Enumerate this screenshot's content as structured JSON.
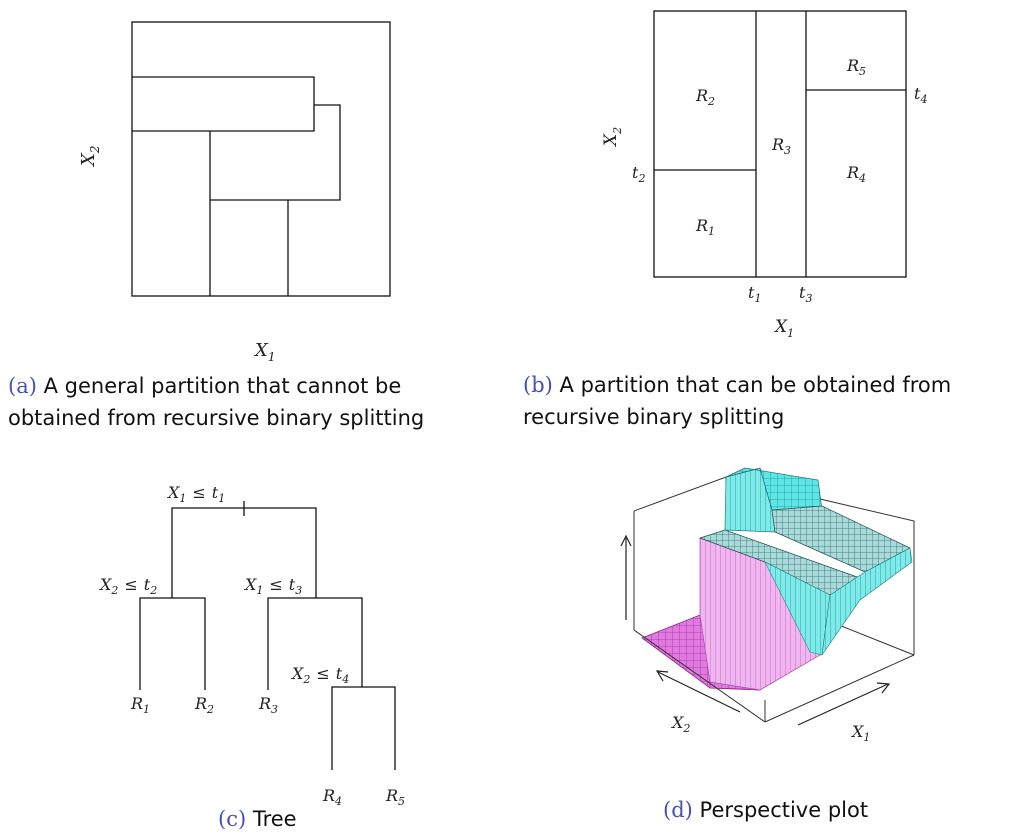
{
  "panels": {
    "a": {
      "xlabel": "X",
      "xlabel_sub": "1",
      "ylabel": "X",
      "ylabel_sub": "2",
      "caption_tag": "(a)",
      "caption_line1": "A general partition that cannot be",
      "caption_line2": "obtained from recursive binary splitting"
    },
    "b": {
      "xlabel": "X",
      "xlabel_sub": "1",
      "ylabel": "X",
      "ylabel_sub": "2",
      "regions": [
        {
          "name": "R",
          "sub": "1"
        },
        {
          "name": "R",
          "sub": "2"
        },
        {
          "name": "R",
          "sub": "3"
        },
        {
          "name": "R",
          "sub": "4"
        },
        {
          "name": "R",
          "sub": "5"
        }
      ],
      "thresholds": {
        "t1": {
          "name": "t",
          "sub": "1"
        },
        "t2": {
          "name": "t",
          "sub": "2"
        },
        "t3": {
          "name": "t",
          "sub": "3"
        },
        "t4": {
          "name": "t",
          "sub": "4"
        }
      },
      "caption_tag": "(b)",
      "caption_line1": "A partition that can be obtained from",
      "caption_line2": "recursive binary splitting"
    },
    "c": {
      "splits": [
        {
          "var": "X",
          "var_sub": "1",
          "op": "≤",
          "thr": "t",
          "thr_sub": "1"
        },
        {
          "var": "X",
          "var_sub": "2",
          "op": "≤",
          "thr": "t",
          "thr_sub": "2"
        },
        {
          "var": "X",
          "var_sub": "1",
          "op": "≤",
          "thr": "t",
          "thr_sub": "3"
        },
        {
          "var": "X",
          "var_sub": "2",
          "op": "≤",
          "thr": "t",
          "thr_sub": "4"
        }
      ],
      "leaves": [
        {
          "name": "R",
          "sub": "1"
        },
        {
          "name": "R",
          "sub": "2"
        },
        {
          "name": "R",
          "sub": "3"
        },
        {
          "name": "R",
          "sub": "4"
        },
        {
          "name": "R",
          "sub": "5"
        }
      ],
      "caption_tag": "(c)",
      "caption_text": "Tree"
    },
    "d": {
      "x1": "X",
      "x1_sub": "1",
      "x2": "X",
      "x2_sub": "2",
      "colors": {
        "cyan": "#5ee6e6",
        "cyan_dark": "#2aa9a9",
        "magenta": "#e07ae0",
        "magenta_dark": "#b53cb5",
        "pink": "#f2b8f2",
        "pink_dark": "#c47ac4",
        "teal_top": "#9ecfcf"
      },
      "caption_tag": "(d)",
      "caption_text": "Perspective plot"
    }
  }
}
